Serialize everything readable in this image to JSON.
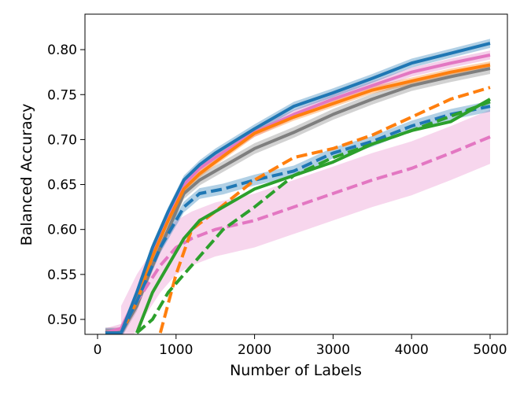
{
  "chart_data": {
    "type": "line",
    "title": "",
    "xlabel": "Number of Labels",
    "ylabel": "Balanced Accuracy",
    "xlim": [
      -150,
      5250
    ],
    "ylim": [
      0.485,
      0.84
    ],
    "xticks": [
      0,
      1000,
      2000,
      3000,
      4000,
      5000
    ],
    "yticks": [
      0.5,
      0.55,
      0.6,
      0.65,
      0.7,
      0.75,
      0.8
    ],
    "ytick_labels": [
      "0.50",
      "0.55",
      "0.60",
      "0.65",
      "0.70",
      "0.75",
      "0.80"
    ],
    "grid": false,
    "series": [
      {
        "color": "#7f7f7f",
        "style": "solid",
        "band": 0.006,
        "x": [
          100,
          300,
          500,
          700,
          900,
          1100,
          1300,
          1500,
          2000,
          2500,
          3000,
          3500,
          4000,
          4500,
          5000
        ],
        "y": [
          0.485,
          0.485,
          0.515,
          0.56,
          0.6,
          0.64,
          0.655,
          0.665,
          0.69,
          0.708,
          0.728,
          0.745,
          0.76,
          0.77,
          0.779
        ]
      },
      {
        "color": "#e377c2",
        "style": "solid",
        "band": 0.005,
        "x": [
          100,
          300,
          500,
          700,
          900,
          1100,
          1300,
          1500,
          2000,
          2500,
          3000,
          3500,
          4000,
          4500,
          5000
        ],
        "y": [
          0.485,
          0.49,
          0.525,
          0.575,
          0.615,
          0.65,
          0.668,
          0.68,
          0.708,
          0.728,
          0.745,
          0.76,
          0.775,
          0.785,
          0.794
        ]
      },
      {
        "color": "#ff7f0e",
        "style": "solid",
        "band": 0.004,
        "x": [
          100,
          300,
          500,
          700,
          900,
          1100,
          1300,
          1500,
          2000,
          2500,
          3000,
          3500,
          4000,
          4500,
          5000
        ],
        "y": [
          0.485,
          0.485,
          0.52,
          0.57,
          0.61,
          0.645,
          0.662,
          0.675,
          0.707,
          0.725,
          0.74,
          0.755,
          0.765,
          0.775,
          0.783
        ]
      },
      {
        "color": "#1f77b4",
        "style": "solid",
        "band": 0.005,
        "x": [
          100,
          300,
          500,
          700,
          900,
          1100,
          1300,
          1500,
          2000,
          2500,
          3000,
          3500,
          4000,
          4500,
          5000
        ],
        "y": [
          0.485,
          0.485,
          0.53,
          0.58,
          0.62,
          0.655,
          0.672,
          0.685,
          0.712,
          0.737,
          0.752,
          0.768,
          0.785,
          0.796,
          0.807
        ]
      },
      {
        "color": "#e377c2",
        "style": "dashed",
        "band": 0.03,
        "x": [
          300,
          500,
          800,
          1000,
          1200,
          1500,
          2000,
          2500,
          3000,
          3500,
          4000,
          4500,
          5000
        ],
        "y": [
          0.485,
          0.52,
          0.56,
          0.58,
          0.59,
          0.6,
          0.61,
          0.625,
          0.64,
          0.655,
          0.668,
          0.685,
          0.703
        ]
      },
      {
        "color": "#1f77b4",
        "style": "dashed",
        "band": 0.006,
        "x": [
          300,
          500,
          800,
          1100,
          1300,
          1600,
          2000,
          2500,
          3000,
          3500,
          4000,
          4500,
          5000
        ],
        "y": [
          0.485,
          0.52,
          0.58,
          0.625,
          0.64,
          0.645,
          0.655,
          0.665,
          0.685,
          0.698,
          0.715,
          0.728,
          0.737
        ]
      },
      {
        "color": "#ff7f0e",
        "style": "dashed",
        "band": 0,
        "x": [
          800,
          1000,
          1200,
          1500,
          2000,
          2500,
          3000,
          3500,
          4000,
          4500,
          5000
        ],
        "y": [
          0.485,
          0.55,
          0.6,
          0.62,
          0.655,
          0.68,
          0.69,
          0.705,
          0.725,
          0.745,
          0.758
        ]
      },
      {
        "color": "#2ca02c",
        "style": "solid",
        "band": 0,
        "x": [
          500,
          700,
          900,
          1100,
          1300,
          1500,
          1800,
          2000,
          2500,
          3000,
          3500,
          4000,
          4500,
          5000
        ],
        "y": [
          0.485,
          0.53,
          0.56,
          0.59,
          0.61,
          0.62,
          0.635,
          0.645,
          0.66,
          0.675,
          0.695,
          0.71,
          0.72,
          0.745
        ]
      },
      {
        "color": "#2ca02c",
        "style": "dashed",
        "band": 0,
        "x": [
          500,
          700,
          900,
          1100,
          1300,
          1600,
          2000,
          2500,
          3000,
          3500,
          4000,
          5000
        ],
        "y": [
          0.485,
          0.5,
          0.53,
          0.55,
          0.57,
          0.6,
          0.625,
          0.66,
          0.68,
          0.695,
          0.71,
          0.742
        ]
      }
    ]
  }
}
